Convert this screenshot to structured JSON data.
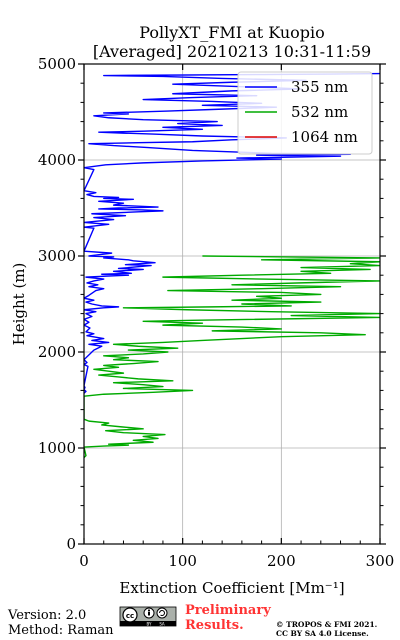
{
  "chart_data": {
    "type": "line",
    "title": [
      "PollyXT_FMI at Kuopio",
      "[Averaged] 20210213 10:31-11:59"
    ],
    "xlabel": "Extinction Coefficient [Mm⁻¹]",
    "ylabel": "Height (m)",
    "xlim": [
      0,
      300
    ],
    "ylim": [
      0,
      5000
    ],
    "xticks": [
      0,
      100,
      200,
      300
    ],
    "yticks": [
      0,
      1000,
      2000,
      3000,
      4000,
      5000
    ],
    "grid": true,
    "legend_position": "top-right",
    "series": [
      {
        "name": "355 nm",
        "color": "#0000ff",
        "points": [
          [
            0,
            1570
          ],
          [
            2,
            1590
          ],
          [
            0,
            1610
          ],
          [
            1,
            1630
          ],
          [
            0,
            1650
          ],
          [
            4,
            1850
          ],
          [
            0,
            1870
          ],
          [
            3,
            1890
          ],
          [
            0,
            1920
          ],
          [
            10,
            2020
          ],
          [
            18,
            2060
          ],
          [
            5,
            2080
          ],
          [
            25,
            2100
          ],
          [
            8,
            2120
          ],
          [
            20,
            2140
          ],
          [
            3,
            2170
          ],
          [
            10,
            2190
          ],
          [
            2,
            2210
          ],
          [
            6,
            2250
          ],
          [
            0,
            2280
          ],
          [
            5,
            2310
          ],
          [
            0,
            2340
          ],
          [
            8,
            2370
          ],
          [
            2,
            2400
          ],
          [
            12,
            2420
          ],
          [
            0,
            2440
          ],
          [
            20,
            2460
          ],
          [
            35,
            2470
          ],
          [
            18,
            2480
          ],
          [
            8,
            2500
          ],
          [
            2,
            2520
          ],
          [
            10,
            2540
          ],
          [
            0,
            2560
          ],
          [
            5,
            2590
          ],
          [
            12,
            2640
          ],
          [
            20,
            2660
          ],
          [
            5,
            2680
          ],
          [
            14,
            2700
          ],
          [
            3,
            2720
          ],
          [
            10,
            2740
          ],
          [
            20,
            2760
          ],
          [
            2,
            2780
          ],
          [
            22,
            2790
          ],
          [
            45,
            2800
          ],
          [
            18,
            2810
          ],
          [
            48,
            2820
          ],
          [
            30,
            2840
          ],
          [
            60,
            2860
          ],
          [
            35,
            2870
          ],
          [
            68,
            2900
          ],
          [
            42,
            2910
          ],
          [
            72,
            2930
          ],
          [
            50,
            2950
          ],
          [
            45,
            2960
          ],
          [
            20,
            2980
          ],
          [
            30,
            2990
          ],
          [
            5,
            3000
          ],
          [
            28,
            3030
          ],
          [
            0,
            3050
          ],
          [
            10,
            3290
          ],
          [
            0,
            3300
          ],
          [
            25,
            3330
          ],
          [
            0,
            3350
          ],
          [
            30,
            3380
          ],
          [
            10,
            3400
          ],
          [
            42,
            3420
          ],
          [
            8,
            3440
          ],
          [
            55,
            3460
          ],
          [
            80,
            3470
          ],
          [
            60,
            3480
          ],
          [
            15,
            3490
          ],
          [
            35,
            3500
          ],
          [
            75,
            3510
          ],
          [
            30,
            3530
          ],
          [
            40,
            3550
          ],
          [
            15,
            3570
          ],
          [
            50,
            3590
          ],
          [
            20,
            3600
          ],
          [
            35,
            3610
          ],
          [
            10,
            3620
          ],
          [
            3,
            3640
          ],
          [
            12,
            3660
          ],
          [
            0,
            3680
          ],
          [
            10,
            3900
          ],
          [
            0,
            3920
          ],
          [
            22,
            3950
          ],
          [
            60,
            3970
          ],
          [
            120,
            3990
          ],
          [
            200,
            4010
          ],
          [
            155,
            4020
          ],
          [
            260,
            4040
          ],
          [
            175,
            4050
          ],
          [
            270,
            4060
          ],
          [
            190,
            4070
          ],
          [
            110,
            4100
          ],
          [
            65,
            4130
          ],
          [
            30,
            4150
          ],
          [
            5,
            4170
          ],
          [
            55,
            4180
          ],
          [
            110,
            4190
          ],
          [
            150,
            4210
          ],
          [
            205,
            4230
          ],
          [
            120,
            4250
          ],
          [
            70,
            4270
          ],
          [
            40,
            4280
          ],
          [
            15,
            4290
          ],
          [
            60,
            4300
          ],
          [
            120,
            4320
          ],
          [
            80,
            4340
          ],
          [
            140,
            4360
          ],
          [
            95,
            4380
          ],
          [
            135,
            4400
          ],
          [
            60,
            4420
          ],
          [
            25,
            4440
          ],
          [
            10,
            4460
          ],
          [
            45,
            4480
          ],
          [
            20,
            4490
          ],
          [
            85,
            4510
          ],
          [
            140,
            4530
          ],
          [
            195,
            4550
          ],
          [
            120,
            4570
          ],
          [
            180,
            4590
          ],
          [
            130,
            4610
          ],
          [
            60,
            4630
          ],
          [
            110,
            4650
          ],
          [
            175,
            4670
          ],
          [
            90,
            4690
          ],
          [
            150,
            4720
          ],
          [
            220,
            4740
          ],
          [
            170,
            4760
          ],
          [
            90,
            4790
          ],
          [
            150,
            4810
          ],
          [
            225,
            4830
          ],
          [
            140,
            4850
          ],
          [
            80,
            4870
          ],
          [
            20,
            4880
          ],
          [
            180,
            4890
          ],
          [
            250,
            4895
          ],
          [
            300,
            4900
          ]
        ]
      },
      {
        "name": "532 nm",
        "color": "#00aa00",
        "points": [
          [
            0,
            900
          ],
          [
            2,
            920
          ],
          [
            0,
            1010
          ],
          [
            20,
            1020
          ],
          [
            45,
            1030
          ],
          [
            25,
            1040
          ],
          [
            70,
            1060
          ],
          [
            50,
            1080
          ],
          [
            75,
            1100
          ],
          [
            60,
            1120
          ],
          [
            82,
            1140
          ],
          [
            40,
            1160
          ],
          [
            22,
            1180
          ],
          [
            60,
            1200
          ],
          [
            38,
            1220
          ],
          [
            18,
            1240
          ],
          [
            25,
            1260
          ],
          [
            5,
            1280
          ],
          [
            0,
            1300
          ],
          [
            0,
            1540
          ],
          [
            20,
            1560
          ],
          [
            70,
            1580
          ],
          [
            110,
            1600
          ],
          [
            40,
            1620
          ],
          [
            80,
            1640
          ],
          [
            60,
            1660
          ],
          [
            30,
            1680
          ],
          [
            90,
            1700
          ],
          [
            55,
            1720
          ],
          [
            35,
            1740
          ],
          [
            15,
            1760
          ],
          [
            40,
            1780
          ],
          [
            25,
            1800
          ],
          [
            10,
            1820
          ],
          [
            35,
            1840
          ],
          [
            20,
            1860
          ],
          [
            50,
            1880
          ],
          [
            75,
            1900
          ],
          [
            30,
            1920
          ],
          [
            45,
            1940
          ],
          [
            20,
            1960
          ],
          [
            60,
            1980
          ],
          [
            85,
            2000
          ],
          [
            45,
            2020
          ],
          [
            95,
            2040
          ],
          [
            55,
            2060
          ],
          [
            30,
            2080
          ],
          [
            80,
            2100
          ],
          [
            120,
            2120
          ],
          [
            160,
            2140
          ],
          [
            200,
            2160
          ],
          [
            285,
            2180
          ],
          [
            240,
            2200
          ],
          [
            130,
            2220
          ],
          [
            200,
            2240
          ],
          [
            160,
            2260
          ],
          [
            80,
            2280
          ],
          [
            120,
            2300
          ],
          [
            60,
            2320
          ],
          [
            110,
            2330
          ],
          [
            300,
            2360
          ],
          [
            210,
            2380
          ],
          [
            300,
            2400
          ],
          [
            190,
            2420
          ],
          [
            105,
            2440
          ],
          [
            40,
            2460
          ],
          [
            130,
            2470
          ],
          [
            210,
            2480
          ],
          [
            160,
            2500
          ],
          [
            240,
            2520
          ],
          [
            150,
            2540
          ],
          [
            200,
            2560
          ],
          [
            175,
            2580
          ],
          [
            240,
            2600
          ],
          [
            200,
            2620
          ],
          [
            85,
            2640
          ],
          [
            180,
            2660
          ],
          [
            260,
            2680
          ],
          [
            150,
            2700
          ],
          [
            220,
            2720
          ],
          [
            300,
            2740
          ],
          [
            180,
            2760
          ],
          [
            80,
            2780
          ],
          [
            160,
            2800
          ],
          [
            250,
            2820
          ],
          [
            220,
            2840
          ],
          [
            290,
            2860
          ],
          [
            220,
            2880
          ],
          [
            300,
            2900
          ],
          [
            270,
            2920
          ],
          [
            300,
            2940
          ],
          [
            180,
            2960
          ],
          [
            300,
            2980
          ],
          [
            120,
            3000
          ]
        ]
      },
      {
        "name": "1064 nm",
        "color": "#dd0000",
        "points": []
      }
    ]
  },
  "footer": {
    "version": "Version: 2.0",
    "method": "Method: Raman",
    "license_badge": [
      "cc",
      "BY",
      "SA"
    ],
    "preliminary": [
      "Preliminary",
      "Results."
    ],
    "copyright": [
      "© TROPOS & FMI 2021.",
      "CC BY SA 4.0 License."
    ]
  }
}
